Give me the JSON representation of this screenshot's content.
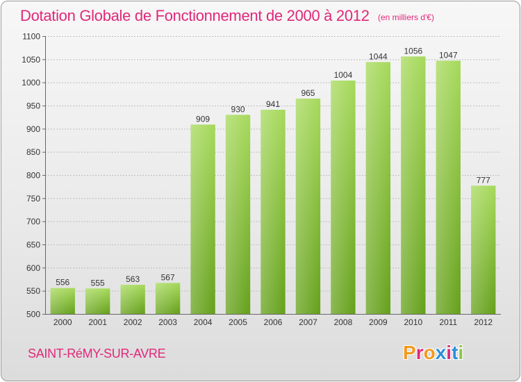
{
  "header": {
    "title": "Dotation Globale de Fonctionnement de 2000 à 2012",
    "subtitle": "(en milliers d'€)"
  },
  "footer": {
    "commune": "SAINT-RéMY-SUR-AVRE",
    "logo_text": "Proxiti",
    "logo_colors": [
      "#f29a1f",
      "#e0287a",
      "#f29a1f",
      "#2a8fd6",
      "#e0287a",
      "#2a8fd6",
      "#8bc34a"
    ]
  },
  "chart_data": {
    "type": "bar",
    "title": "Dotation Globale de Fonctionnement de 2000 à 2012",
    "subtitle": "(en milliers d'€)",
    "categories": [
      "2000",
      "2001",
      "2002",
      "2003",
      "2004",
      "2005",
      "2006",
      "2007",
      "2008",
      "2009",
      "2010",
      "2011",
      "2012"
    ],
    "values": [
      556,
      555,
      563,
      567,
      909,
      930,
      941,
      965,
      1004,
      1044,
      1056,
      1047,
      777
    ],
    "ylim": [
      500,
      1100
    ],
    "yticks": [
      500,
      550,
      600,
      650,
      700,
      750,
      800,
      850,
      900,
      950,
      1000,
      1050,
      1100
    ],
    "grid": true,
    "bar_color": "#8cc63f",
    "xlabel": "",
    "ylabel": ""
  }
}
